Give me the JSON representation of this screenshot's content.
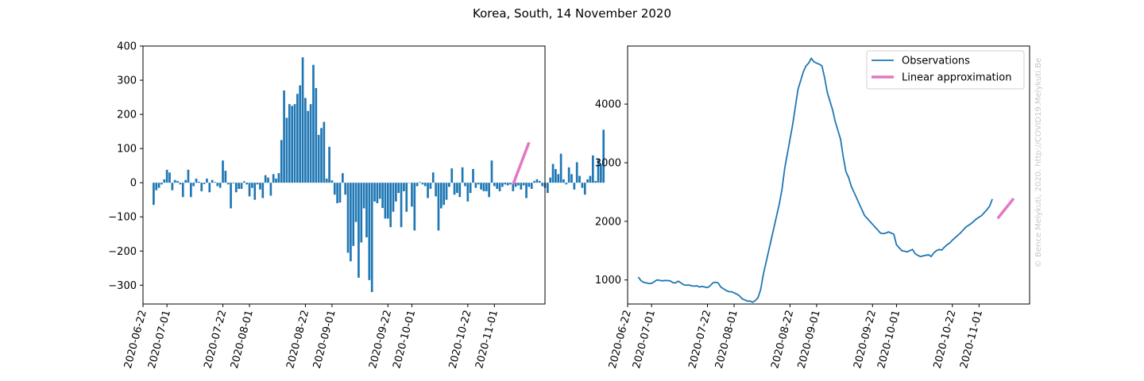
{
  "figure": {
    "title": "Korea, South, 14 November 2020",
    "credit": "© Bence Melykuti, 2020. http://COVID19.Melykuti.Be"
  },
  "colors": {
    "observations": "#1f77b4",
    "approximation": "#e377c2"
  },
  "chart_data": [
    {
      "type": "bar",
      "name": "daily-change",
      "x_ticks": [
        "2020-06-22",
        "2020-07-01",
        "2020-07-22",
        "2020-08-01",
        "2020-08-22",
        "2020-09-01",
        "2020-09-22",
        "2020-10-01",
        "2020-10-22",
        "2020-11-01"
      ],
      "y_ticks": [
        -300,
        -200,
        -100,
        0,
        100,
        200,
        300,
        400
      ],
      "xlim": [
        "2020-06-22",
        "2020-11-20"
      ],
      "ylim": [
        -355,
        400
      ],
      "series": [
        {
          "x_start": "2020-06-26",
          "values": [
            -65,
            -22,
            -15,
            -5,
            10,
            38,
            30,
            -22,
            8,
            5,
            -5,
            -42,
            8,
            38,
            -42,
            -10,
            12,
            3,
            -25,
            -4,
            12,
            -28,
            8,
            2,
            -10,
            -15,
            65,
            35,
            -5,
            -75,
            -2,
            -28,
            -18,
            -18,
            4,
            -5,
            -40,
            -15,
            -50,
            -5,
            -20,
            -45,
            22,
            15,
            -38,
            25,
            12,
            28,
            125,
            270,
            190,
            230,
            225,
            230,
            260,
            285,
            367,
            248,
            210,
            230,
            345,
            277,
            140,
            160,
            178,
            12,
            105,
            7,
            -35,
            -60,
            -58,
            28,
            -35,
            -205,
            -230,
            -185,
            -115,
            -278,
            -175,
            -75,
            -160,
            -285,
            -320,
            -55,
            -60,
            -47,
            -74,
            -105,
            -105,
            -130,
            -85,
            -55,
            -30,
            -130,
            -25,
            -85,
            0,
            -70,
            -140,
            -10,
            2,
            -5,
            -10,
            -45,
            -18,
            30,
            -40,
            -140,
            -75,
            -65,
            -50,
            -12,
            42,
            -35,
            -30,
            -42,
            45,
            -10,
            -55,
            -30,
            40,
            -15,
            -5,
            -20,
            -25,
            -25,
            -42,
            65,
            -10,
            -18,
            -25,
            -12,
            -5,
            -8,
            -5,
            -25,
            -12,
            -8,
            -20,
            -8,
            -45,
            -12,
            -18,
            5,
            10,
            5,
            -10,
            -15,
            -30,
            15,
            55,
            40,
            25,
            85,
            10,
            -5,
            45,
            25,
            -20,
            60,
            20,
            -15,
            -35,
            10,
            20,
            80,
            5,
            70,
            55,
            155
          ],
          "note_tail_order": "chronological"
        }
      ],
      "approximation": {
        "x": [
          "2020-11-08",
          "2020-11-14"
        ],
        "y": [
          -5,
          118
        ]
      }
    },
    {
      "type": "line",
      "name": "active-cases",
      "x_ticks": [
        "2020-06-22",
        "2020-07-01",
        "2020-07-22",
        "2020-08-01",
        "2020-08-22",
        "2020-09-01",
        "2020-09-22",
        "2020-10-01",
        "2020-10-22",
        "2020-11-01"
      ],
      "y_ticks": [
        1000,
        2000,
        3000,
        4000
      ],
      "xlim": [
        "2020-06-22",
        "2020-11-20"
      ],
      "ylim": [
        590,
        4990
      ],
      "legend": {
        "placement": "upper right",
        "entries": [
          "Observations",
          "Linear approximation"
        ]
      },
      "series": [
        {
          "name": "Observations",
          "x_start": "2020-06-26",
          "values": [
            1050,
            990,
            960,
            950,
            940,
            940,
            970,
            1000,
            995,
            985,
            990,
            990,
            985,
            955,
            950,
            980,
            950,
            920,
            910,
            915,
            900,
            895,
            900,
            880,
            890,
            880,
            870,
            900,
            950,
            960,
            950,
            880,
            850,
            820,
            800,
            800,
            780,
            760,
            730,
            680,
            660,
            640,
            640,
            620,
            650,
            700,
            840,
            1100,
            1300,
            1500,
            1700,
            1900,
            2100,
            2300,
            2550,
            2900,
            3150,
            3400,
            3650,
            3950,
            4250,
            4400,
            4550,
            4650,
            4700,
            4780,
            4720,
            4700,
            4680,
            4650,
            4450,
            4200,
            4050,
            3900,
            3700,
            3550,
            3400,
            3100,
            2850,
            2750,
            2600,
            2500,
            2400,
            2300,
            2200,
            2100,
            2050,
            2000,
            1950,
            1900,
            1850,
            1800,
            1790,
            1800,
            1820,
            1800,
            1780,
            1600,
            1550,
            1500,
            1490,
            1480,
            1500,
            1520,
            1450,
            1420,
            1400,
            1410,
            1420,
            1430,
            1400,
            1460,
            1500,
            1520,
            1510,
            1560,
            1600,
            1630,
            1680,
            1720,
            1760,
            1800,
            1850,
            1900,
            1930,
            1960,
            2000,
            2040,
            2070,
            2100,
            2150,
            2200,
            2260,
            2380
          ]
        }
      ],
      "approximation": {
        "x": [
          "2020-11-08",
          "2020-11-14"
        ],
        "y": [
          2050,
          2390
        ]
      }
    }
  ]
}
